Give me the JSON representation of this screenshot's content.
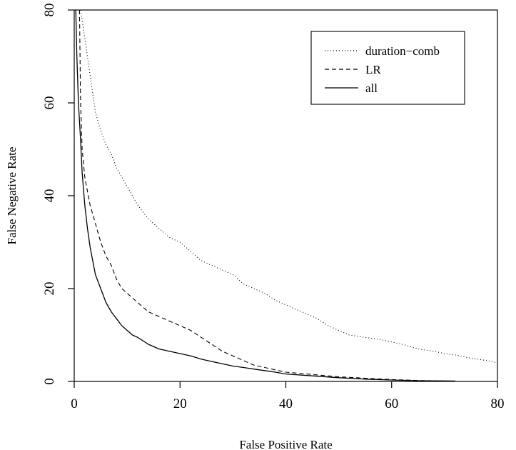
{
  "chart_data": {
    "type": "line",
    "title": "",
    "xlabel": "False Positive Rate",
    "ylabel": "False Negative Rate",
    "xlim": [
      0,
      80
    ],
    "ylim": [
      0,
      80
    ],
    "x_ticks": [
      "0",
      "20",
      "40",
      "60",
      "80"
    ],
    "y_ticks": [
      "0",
      "20",
      "40",
      "60",
      "80"
    ],
    "grid": false,
    "legend_position": "top-right",
    "series": [
      {
        "name": "duration−comb",
        "line_style": "dotted",
        "points": [
          [
            1.2,
            80
          ],
          [
            2,
            74
          ],
          [
            3,
            66
          ],
          [
            4,
            58
          ],
          [
            5,
            54
          ],
          [
            6,
            51
          ],
          [
            7,
            49
          ],
          [
            8,
            46
          ],
          [
            9,
            44
          ],
          [
            10,
            42
          ],
          [
            12,
            38
          ],
          [
            14,
            35
          ],
          [
            16,
            33
          ],
          [
            18,
            31
          ],
          [
            20,
            30
          ],
          [
            22,
            28
          ],
          [
            24,
            26
          ],
          [
            26,
            25
          ],
          [
            28,
            24
          ],
          [
            30,
            23
          ],
          [
            32,
            21
          ],
          [
            34,
            20
          ],
          [
            36,
            19
          ],
          [
            38,
            17.5
          ],
          [
            40,
            16.5
          ],
          [
            42,
            15.5
          ],
          [
            44,
            14.5
          ],
          [
            46,
            13.5
          ],
          [
            48,
            12
          ],
          [
            50,
            11
          ],
          [
            52,
            10
          ],
          [
            55,
            9.5
          ],
          [
            58,
            9
          ],
          [
            60,
            8.5
          ],
          [
            62,
            8
          ],
          [
            65,
            7
          ],
          [
            68,
            6.5
          ],
          [
            70,
            6
          ],
          [
            72,
            5.7
          ],
          [
            75,
            5
          ],
          [
            78,
            4.5
          ],
          [
            80,
            4
          ]
        ]
      },
      {
        "name": "LR",
        "line_style": "dashed",
        "points": [
          [
            1,
            80
          ],
          [
            1.2,
            60
          ],
          [
            1.5,
            50
          ],
          [
            2,
            44
          ],
          [
            3,
            38
          ],
          [
            4,
            34
          ],
          [
            5,
            30
          ],
          [
            6,
            27
          ],
          [
            7,
            25
          ],
          [
            8,
            22
          ],
          [
            9,
            20
          ],
          [
            10,
            19
          ],
          [
            12,
            17
          ],
          [
            14,
            15
          ],
          [
            16,
            14
          ],
          [
            18,
            13
          ],
          [
            20,
            12
          ],
          [
            22,
            11
          ],
          [
            24,
            9.5
          ],
          [
            26,
            8
          ],
          [
            28,
            6.5
          ],
          [
            30,
            5.5
          ],
          [
            32,
            4.5
          ],
          [
            34,
            3.5
          ],
          [
            36,
            3
          ],
          [
            38,
            2.5
          ],
          [
            40,
            2
          ],
          [
            45,
            1.5
          ],
          [
            50,
            1
          ],
          [
            55,
            0.7
          ],
          [
            60,
            0.4
          ],
          [
            65,
            0.2
          ],
          [
            70,
            0.1
          ]
        ]
      },
      {
        "name": "all",
        "line_style": "solid",
        "points": [
          [
            0.3,
            80
          ],
          [
            0.5,
            70
          ],
          [
            0.8,
            60
          ],
          [
            1.2,
            52
          ],
          [
            1.5,
            45
          ],
          [
            2,
            38
          ],
          [
            2.5,
            33
          ],
          [
            3,
            29
          ],
          [
            3.5,
            26
          ],
          [
            4,
            23
          ],
          [
            5,
            20
          ],
          [
            6,
            17
          ],
          [
            7,
            15
          ],
          [
            8,
            13.5
          ],
          [
            9,
            12
          ],
          [
            10,
            11
          ],
          [
            11,
            10
          ],
          [
            12,
            9.5
          ],
          [
            14,
            8
          ],
          [
            16,
            7
          ],
          [
            18,
            6.5
          ],
          [
            20,
            6
          ],
          [
            22,
            5.5
          ],
          [
            24,
            4.8
          ],
          [
            26,
            4.3
          ],
          [
            28,
            3.8
          ],
          [
            30,
            3.3
          ],
          [
            32,
            3
          ],
          [
            35,
            2.5
          ],
          [
            38,
            2
          ],
          [
            40,
            1.6
          ],
          [
            45,
            1.2
          ],
          [
            50,
            0.8
          ],
          [
            55,
            0.5
          ],
          [
            60,
            0.3
          ],
          [
            65,
            0.15
          ],
          [
            72,
            0.1
          ]
        ]
      }
    ]
  }
}
